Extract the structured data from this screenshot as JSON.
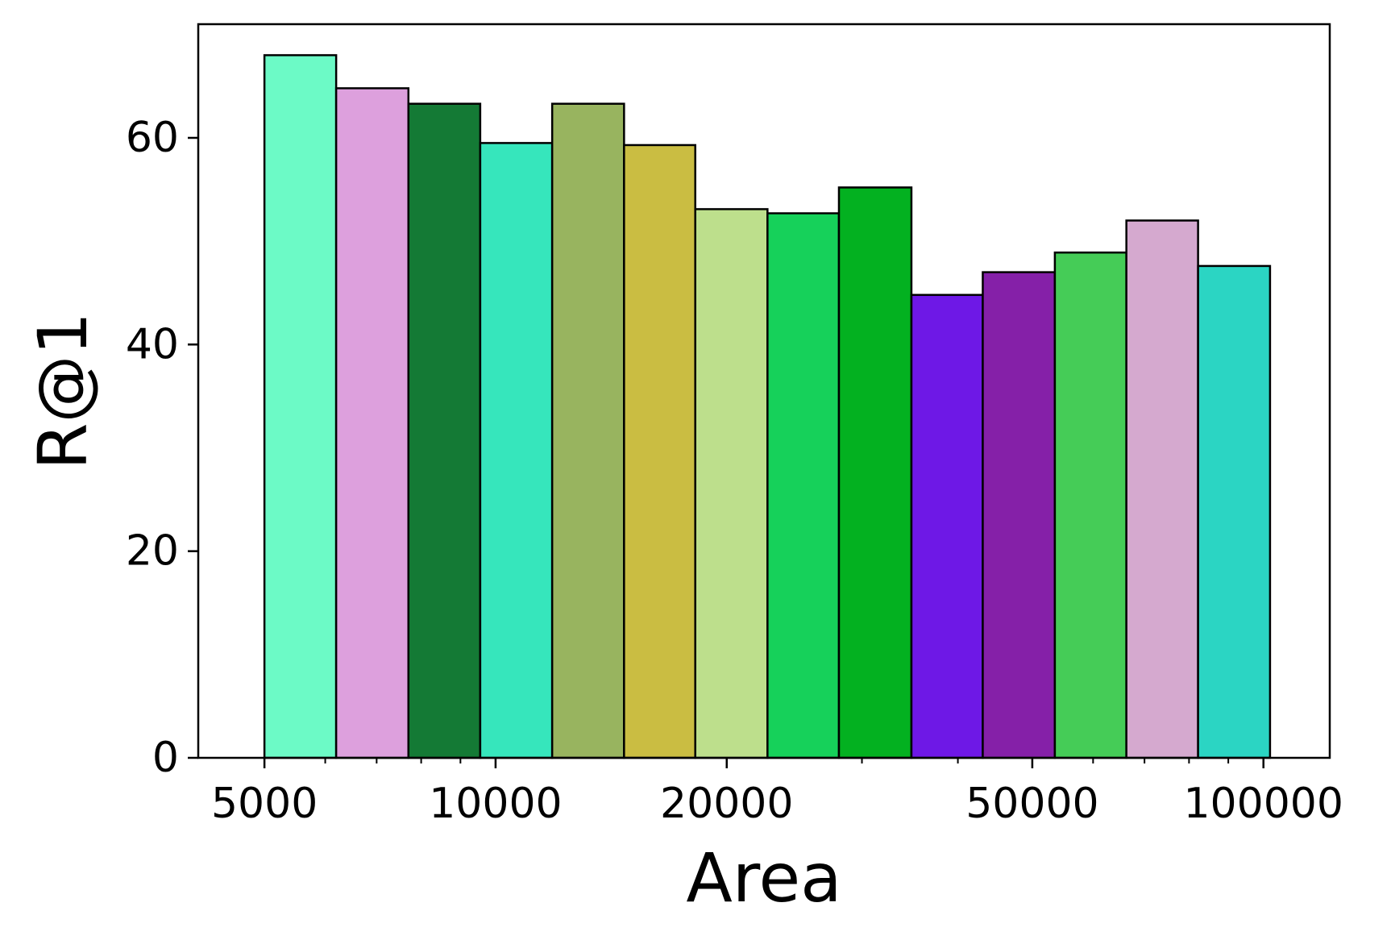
{
  "chart_data": {
    "type": "bar",
    "title": "",
    "xlabel": "Area",
    "ylabel": "R@1",
    "xscale": "log",
    "xlim": [
      4100,
      122000
    ],
    "ylim": [
      0,
      71
    ],
    "grid": false,
    "xticks": [
      {
        "value": 5000,
        "label": "5000"
      },
      {
        "value": 10000,
        "label": "10000"
      },
      {
        "value": 20000,
        "label": "20000"
      },
      {
        "value": 50000,
        "label": "50000"
      },
      {
        "value": 100000,
        "label": "100000"
      }
    ],
    "x_minor_ticks": [
      6000,
      7000,
      8000,
      9000,
      30000,
      40000,
      60000,
      70000,
      80000,
      90000
    ],
    "yticks": [
      {
        "value": 0,
        "label": "0"
      },
      {
        "value": 20,
        "label": "20"
      },
      {
        "value": 40,
        "label": "40"
      },
      {
        "value": 60,
        "label": "60"
      }
    ],
    "bins": [
      {
        "x_start": 5000,
        "x_end": 6200,
        "value": 68.0,
        "color": "#6cfac6"
      },
      {
        "x_start": 6200,
        "x_end": 7700,
        "value": 64.8,
        "color": "#dda0dd"
      },
      {
        "x_start": 7700,
        "x_end": 9550,
        "value": 63.3,
        "color": "#147a35"
      },
      {
        "x_start": 9550,
        "x_end": 11850,
        "value": 59.5,
        "color": "#36e6bc"
      },
      {
        "x_start": 11850,
        "x_end": 14700,
        "value": 63.3,
        "color": "#98b45f"
      },
      {
        "x_start": 14700,
        "x_end": 18200,
        "value": 59.3,
        "color": "#cabd42"
      },
      {
        "x_start": 18200,
        "x_end": 22600,
        "value": 53.1,
        "color": "#bddf8c"
      },
      {
        "x_start": 22600,
        "x_end": 28000,
        "value": 52.7,
        "color": "#16d15a"
      },
      {
        "x_start": 28000,
        "x_end": 34800,
        "value": 55.2,
        "color": "#03b120"
      },
      {
        "x_start": 34800,
        "x_end": 43100,
        "value": 44.8,
        "color": "#6e18e6"
      },
      {
        "x_start": 43100,
        "x_end": 53500,
        "value": 47.0,
        "color": "#8520a8"
      },
      {
        "x_start": 53500,
        "x_end": 66300,
        "value": 48.9,
        "color": "#45cc57"
      },
      {
        "x_start": 66300,
        "x_end": 82200,
        "value": 52.0,
        "color": "#d5a9cf"
      },
      {
        "x_start": 82200,
        "x_end": 102000,
        "value": 47.6,
        "color": "#2bd5c3"
      }
    ]
  }
}
